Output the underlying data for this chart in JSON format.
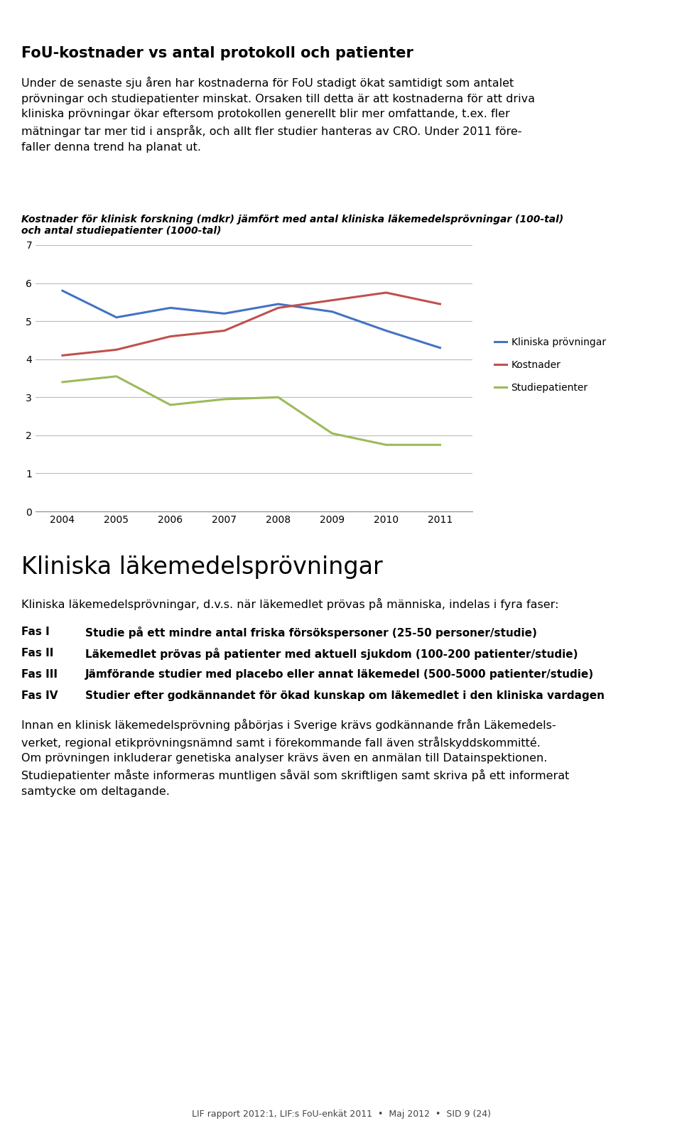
{
  "page_bg": "#ffffff",
  "header_bar_color": "#b8c9d9",
  "title": "FoU-kostnader vs antal protokoll och patienter",
  "title_fontsize": 15,
  "intro_text": "Under de senaste sju åren har kostnaderna för FoU stadigt ökat samtidigt som antalet\nprövningar och studiepatienter minskat. Orsaken till detta är att kostnaderna för att driva\nkliniska prövningar ökar eftersom protokollen generellt blir mer omfattande, t.ex. fler\nmätningar tar mer tid i anspråk, och allt fler studier hanteras av CRO. Under 2011 före-\nfaller denna trend ha planat ut.",
  "intro_fontsize": 11.5,
  "chart_title_line1": "Kostnader för klinisk forskning (mdkr) jämfört med antal kliniska läkemedelsprövningar (100-tal)",
  "chart_title_line2": "och antal studiepatienter (1000-tal)",
  "chart_title_fontsize": 10,
  "years": [
    2004,
    2005,
    2006,
    2007,
    2008,
    2009,
    2010,
    2011
  ],
  "kliniska_provningar": [
    5.8,
    5.1,
    5.35,
    5.2,
    5.45,
    5.25,
    4.75,
    4.3
  ],
  "kostnader": [
    4.1,
    4.25,
    4.6,
    4.75,
    5.35,
    5.55,
    5.75,
    5.45
  ],
  "studiepatienter": [
    3.4,
    3.55,
    2.8,
    2.95,
    3.0,
    2.05,
    1.75,
    1.75
  ],
  "line_color_kliniska": "#4472C4",
  "line_color_kostnader": "#C0504D",
  "line_color_studiepatienter": "#9BBB59",
  "ylim": [
    0,
    7
  ],
  "yticks": [
    0,
    1,
    2,
    3,
    4,
    5,
    6,
    7
  ],
  "legend_labels": [
    "Kliniska prövningar",
    "Kostnader",
    "Studiepatienter"
  ],
  "section2_title": "Kliniska läkemedelsprövningar",
  "section2_title_fontsize": 24,
  "section2_intro": "Kliniska läkemedelsprövningar, d.v.s. när läkemedlet prövas på människa, indelas i fyra faser:",
  "section2_intro_fontsize": 11.5,
  "fas_labels": [
    "Fas I",
    "Fas II",
    "Fas III",
    "Fas IV"
  ],
  "fas_descriptions": [
    "Studie på ett mindre antal friska försökspersoner (25-50 personer/studie)",
    "Läkemedlet prövas på patienter med aktuell sjukdom (100-200 patienter/studie)",
    "Jämförande studier med placebo eller annat läkemedel (500-5000 patienter/studie)",
    "Studier efter godkännandet för ökad kunskap om läkemedlet i den kliniska vardagen"
  ],
  "fas_fontsize": 11,
  "paragraph3": "Innan en klinisk läkemedelsprövning påbörjas i Sverige krävs godkännande från Läkemedels-\nverket, regional etikprövningsnämnd samt i förekommande fall även strålskyddskommitté.\nOm prövningen inkluderar genetiska analyser krävs även en anmälan till Datainspektionen.\nStudiepatienter måste informeras muntligen såväl som skriftligen samt skriva på ett informerat\nsamtycke om deltagande.",
  "paragraph3_fontsize": 11.5,
  "footer": "LIF rapport 2012:1, LIF:s FoU-enkät 2011  •  Maj 2012  •  SID 9 (24)",
  "footer_fontsize": 9
}
